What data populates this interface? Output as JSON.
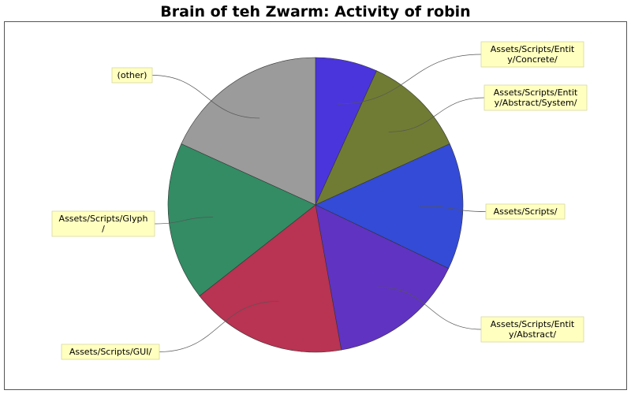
{
  "chart_data": {
    "type": "pie",
    "title": "Brain of teh Zwarm: Activity of robin",
    "slices": [
      {
        "label": "Assets/Scripts/Entity/Concrete/",
        "value": 6.8,
        "color": "#4a35dc",
        "label_lines": [
          "Assets/Scripts/Entit",
          "y/Concrete/"
        ],
        "label_side": "right"
      },
      {
        "label": "Assets/Scripts/Entity/Abstract/System/",
        "value": 11.4,
        "color": "#707c34",
        "label_lines": [
          "Assets/Scripts/Entit",
          "y/Abstract/System/"
        ],
        "label_side": "right"
      },
      {
        "label": "Assets/Scripts/",
        "value": 13.9,
        "color": "#334bd6",
        "label_lines": [
          "Assets/Scripts/"
        ],
        "label_side": "right"
      },
      {
        "label": "Assets/Scripts/Entity/Abstract/",
        "value": 15.1,
        "color": "#6033c2",
        "label_lines": [
          "Assets/Scripts/Entit",
          "y/Abstract/"
        ],
        "label_side": "right"
      },
      {
        "label": "Assets/Scripts/GUI/",
        "value": 17.2,
        "color": "#b93352",
        "label_lines": [
          "Assets/Scripts/GUI/"
        ],
        "label_side": "left"
      },
      {
        "label": "Assets/Scripts/Glyph/",
        "value": 17.4,
        "color": "#338c64",
        "label_lines": [
          "Assets/Scripts/Glyph",
          "/"
        ],
        "label_side": "left"
      },
      {
        "label": "(other)",
        "value": 18.2,
        "color": "#9b9b9b",
        "label_lines": [
          "(other)"
        ],
        "label_side": "left"
      }
    ],
    "start_angle": "12 o'clock",
    "direction": "clockwise",
    "legend": "none"
  }
}
